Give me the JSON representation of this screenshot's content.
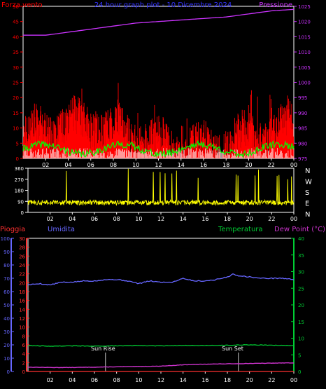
{
  "colors": {
    "background": "#000000",
    "axis_white": "#ffffff",
    "wind": "#ff0000",
    "gust": "#ff2020",
    "avg_wind": "#00ff00",
    "pressure": "#cc33ff",
    "direction": "#ffff00",
    "rain": "#ff3030",
    "humidity": "#6666ff",
    "temperature": "#00cc33",
    "dewpoint": "#cc33cc",
    "title": "#3333ff"
  },
  "chart_data": [
    {
      "type": "line",
      "title": "24 hour graph plot - 10 Dicembre 2024",
      "left_axis_label": "Forza vento",
      "right_axis_label": "Pressione",
      "x_ticks": [
        "02",
        "04",
        "06",
        "08",
        "10",
        "12",
        "14",
        "16",
        "18",
        "20",
        "22",
        "00"
      ],
      "y_left_ticks": [
        "0",
        "5",
        "10",
        "15",
        "20",
        "25",
        "30",
        "35",
        "40",
        "45",
        "50"
      ],
      "y_left_range": [
        0,
        50
      ],
      "y_right_ticks": [
        "975",
        "980",
        "985",
        "990",
        "995",
        "1000",
        "1005",
        "1010",
        "1015",
        "1020",
        "1025"
      ],
      "y_right_range": [
        975,
        1025
      ],
      "series": [
        {
          "key": "pressure",
          "x": [
            0,
            2,
            4,
            6,
            8,
            10,
            12,
            14,
            16,
            18,
            20,
            22,
            24
          ],
          "values": [
            1015.5,
            1015.5,
            1016.5,
            1017.5,
            1018.5,
            1019.5,
            1020,
            1020.5,
            1021,
            1021.5,
            1022.5,
            1023.5,
            1024
          ]
        }
      ]
    },
    {
      "type": "line",
      "right_axis_label": "N W S E N",
      "x_ticks": [
        "02",
        "04",
        "06",
        "08",
        "10",
        "12",
        "14",
        "16",
        "18",
        "20",
        "22",
        "00"
      ],
      "y_ticks": [
        "0",
        "90",
        "180",
        "270",
        "360"
      ],
      "y_range": [
        0,
        360
      ]
    },
    {
      "type": "line",
      "left_axis_labels": [
        "Pioggia",
        "Umidita"
      ],
      "right_axis_labels": [
        "Temperatura",
        "Dew Point (°C)"
      ],
      "x_ticks": [
        "02",
        "04",
        "06",
        "08",
        "10",
        "12",
        "14",
        "16",
        "18",
        "20",
        "22",
        "00"
      ],
      "humidity_ticks": [
        "0",
        "10",
        "20",
        "30",
        "40",
        "50",
        "60",
        "70",
        "80",
        "90",
        "100"
      ],
      "humidity_range": [
        0,
        100
      ],
      "rain_ticks": [
        "0",
        "2",
        "4",
        "6",
        "8",
        "10",
        "12",
        "14",
        "16",
        "18",
        "20",
        "22",
        "24",
        "26",
        "28",
        "30"
      ],
      "rain_range": [
        0,
        30
      ],
      "temp_ticks": [
        "0",
        "5",
        "10",
        "15",
        "20",
        "25",
        "30",
        "35",
        "40"
      ],
      "temp_range": [
        0,
        40
      ],
      "annotations": [
        {
          "label": "Sun Rise",
          "hour": 7.0
        },
        {
          "label": "Sun Set",
          "hour": 19.0
        }
      ],
      "series": [
        {
          "key": "humidity",
          "x": [
            0,
            1,
            2,
            3,
            4,
            5,
            6,
            7,
            8,
            9,
            10,
            11,
            12,
            13,
            14,
            15,
            16,
            17,
            18,
            18.5,
            19,
            20,
            21,
            22,
            23,
            24
          ],
          "values": [
            65,
            66,
            65,
            67,
            67,
            68,
            68,
            69,
            69,
            68,
            66,
            68,
            67,
            67,
            70,
            68,
            68,
            69,
            71,
            73,
            72,
            71,
            70,
            70,
            70,
            69
          ]
        },
        {
          "key": "temperature",
          "x": [
            0,
            2,
            4,
            6,
            8,
            10,
            12,
            14,
            16,
            18,
            20,
            22,
            24
          ],
          "values": [
            7.8,
            7.6,
            7.7,
            7.6,
            7.7,
            7.8,
            7.7,
            7.8,
            7.8,
            7.9,
            8.0,
            7.9,
            7.8
          ]
        },
        {
          "key": "dewpoint",
          "x": [
            0,
            2,
            4,
            6,
            8,
            10,
            12,
            14,
            16,
            18,
            20,
            22,
            24
          ],
          "values": [
            1.3,
            1.2,
            1.2,
            1.3,
            1.4,
            1.5,
            1.6,
            2.0,
            2.2,
            2.3,
            2.4,
            2.5,
            2.6
          ]
        },
        {
          "key": "rain",
          "x": [
            0,
            24
          ],
          "values": [
            0,
            0
          ]
        }
      ]
    }
  ]
}
